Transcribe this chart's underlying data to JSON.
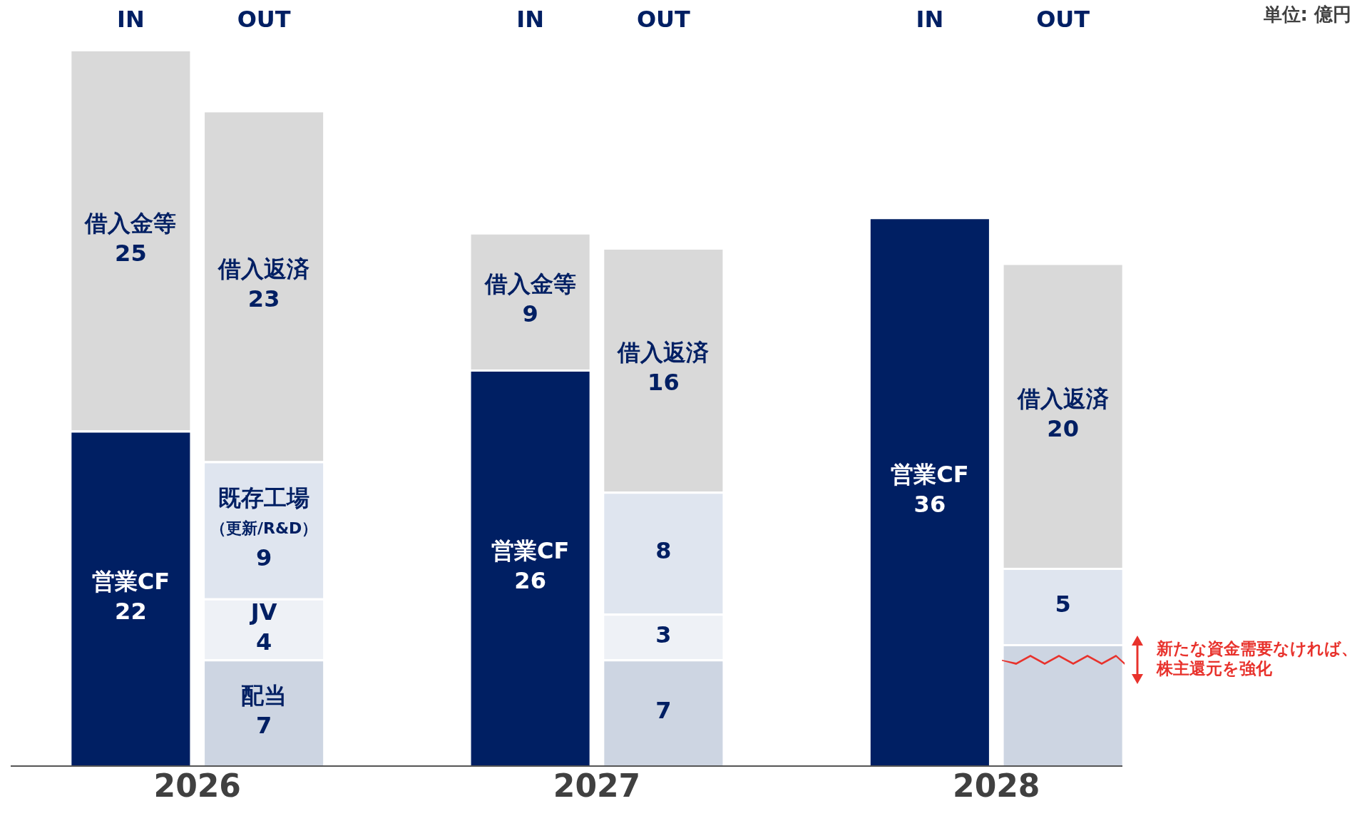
{
  "chart_data": {
    "type": "bar",
    "stacked": true,
    "legend": false,
    "grid": false,
    "tick_labels": "x",
    "categories": [
      "IN",
      "OUT",
      null,
      "IN",
      "OUT",
      null,
      "IN",
      "OUT"
    ],
    "series": [
      {
        "color": "#001f63",
        "values": [
          22,
          null,
          null,
          26,
          null,
          null,
          36,
          null
        ],
        "value_labels": [
          "営業CF\n22",
          null,
          null,
          "営業CF\n26",
          null,
          null,
          "営業CF\n36",
          null
        ]
      },
      {
        "color": "#cdd5e2",
        "values": [
          null,
          7,
          null,
          null,
          7,
          null,
          null,
          8
        ],
        "value_labels": [
          null,
          "配当\n7",
          null,
          null,
          "7",
          null,
          null,
          null
        ]
      },
      {
        "color": "#eef1f6",
        "values": [
          null,
          4,
          null,
          null,
          3,
          null,
          null,
          null
        ],
        "value_labels": [
          null,
          "JV\n4",
          null,
          null,
          "3",
          null,
          null,
          null
        ]
      },
      {
        "color": "#dfe5ef",
        "values": [
          null,
          9,
          null,
          null,
          8,
          null,
          null,
          5
        ],
        "value_labels": [
          null,
          "既存工場（更新/R&D）\n9",
          null,
          null,
          "8",
          null,
          null,
          "5"
        ]
      },
      {
        "color": "#d9d9d9",
        "values": [
          null,
          23,
          null,
          null,
          16,
          null,
          null,
          20
        ],
        "value_labels": [
          null,
          "借入返済\n23",
          null,
          null,
          "借入返済\n16",
          null,
          null,
          "借入返済\n20"
        ]
      },
      {
        "color": "#d9d9d9",
        "values": [
          25,
          null,
          null,
          9,
          null,
          null,
          null,
          null
        ],
        "value_labels": [
          "借入金等\n25",
          null,
          null,
          "借入金等\n9",
          null,
          null,
          null,
          null
        ]
      }
    ],
    "annotations": [
      "2026",
      "2027",
      "2028",
      "単位: 億円",
      "新たな資金需要なければ、株主還元を強化"
    ]
  }
}
